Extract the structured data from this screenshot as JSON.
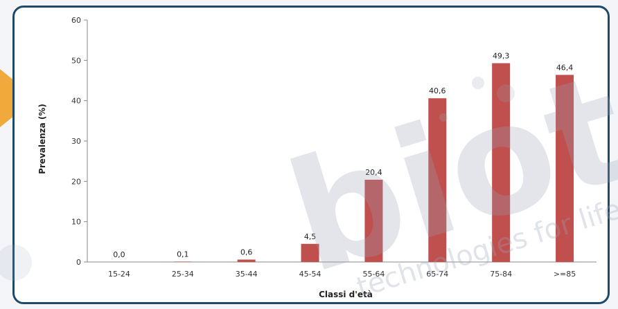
{
  "watermark": {
    "logo_text": "biot",
    "tagline": "technologies for life"
  },
  "colors": {
    "bar": "#c0504d",
    "border": "#1f4a66",
    "accent": "#f0a93a"
  },
  "chart_data": {
    "type": "bar",
    "xlabel": "Classi d'età",
    "ylabel": "Prevalenza (%)",
    "ylim": [
      0,
      60
    ],
    "yticks": [
      0,
      10,
      20,
      30,
      40,
      50,
      60
    ],
    "categories": [
      "15-24",
      "25-34",
      "35-44",
      "45-54",
      "55-64",
      "65-74",
      "75-84",
      ">=85"
    ],
    "values": [
      0.0,
      0.1,
      0.6,
      4.5,
      20.4,
      40.6,
      49.3,
      46.4
    ],
    "data_labels": [
      "0,0",
      "0,1",
      "0,6",
      "4,5",
      "20,4",
      "40,6",
      "49,3",
      "46,4"
    ],
    "grid": false,
    "legend": "none"
  }
}
